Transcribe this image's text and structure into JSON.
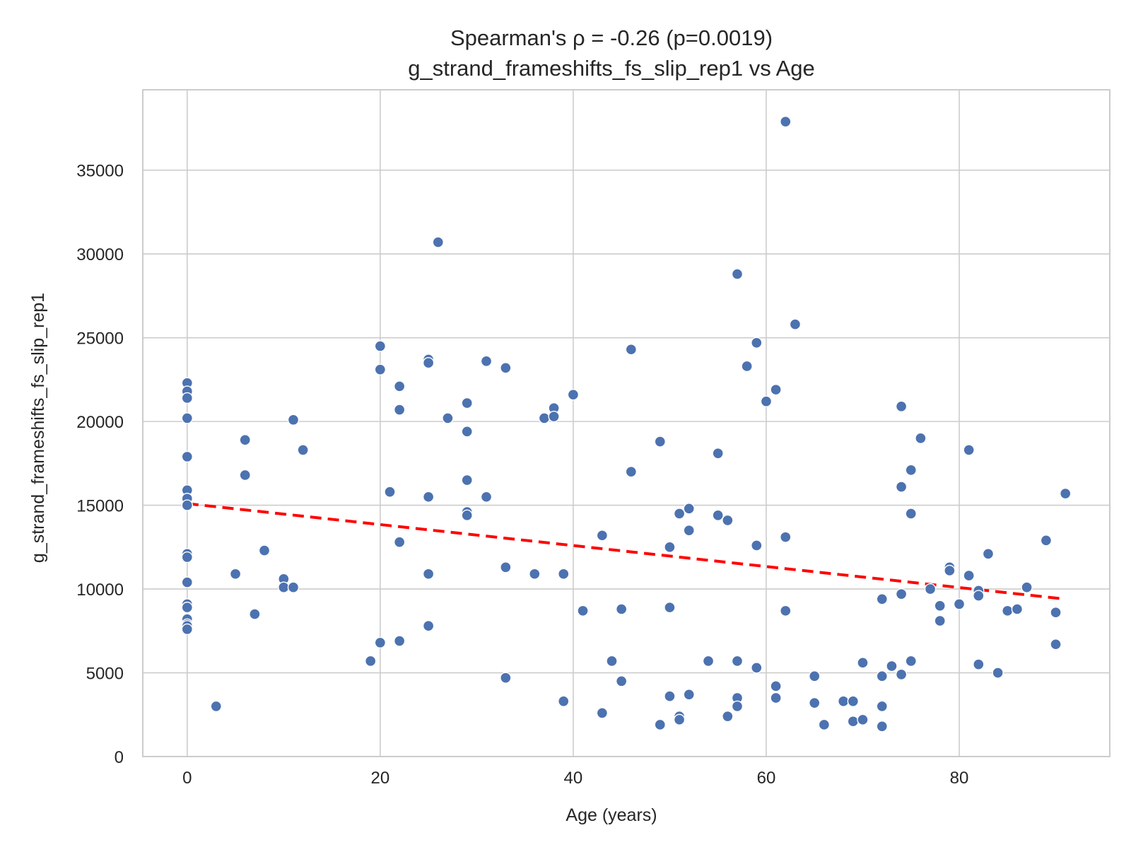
{
  "chart_data": {
    "type": "scatter",
    "title_lines": [
      "Spearman's ρ = -0.26 (p=0.0019)",
      "g_strand_frameshifts_fs_slip_rep1 vs Age"
    ],
    "xlabel": "Age (years)",
    "ylabel": "g_strand_frameshifts_fs_slip_rep1",
    "xlim": [
      -4.6,
      95.6
    ],
    "ylim": [
      0,
      39800
    ],
    "x_ticks": [
      0,
      20,
      40,
      60,
      80
    ],
    "y_ticks": [
      0,
      5000,
      10000,
      15000,
      20000,
      25000,
      30000,
      35000
    ],
    "grid": true,
    "legend": "none",
    "point_color": "#4c72b0",
    "trend_color": "#ff0000",
    "trend_line": {
      "style": "dashed",
      "x": [
        0,
        91
      ],
      "y": [
        15100,
        9400
      ]
    },
    "points": [
      {
        "x": 0,
        "y": 22300
      },
      {
        "x": 0,
        "y": 21800
      },
      {
        "x": 0,
        "y": 21400
      },
      {
        "x": 0,
        "y": 20200
      },
      {
        "x": 0,
        "y": 17900
      },
      {
        "x": 0,
        "y": 15900
      },
      {
        "x": 0,
        "y": 15400
      },
      {
        "x": 0,
        "y": 15000
      },
      {
        "x": 0,
        "y": 12100
      },
      {
        "x": 0,
        "y": 11900
      },
      {
        "x": 0,
        "y": 10400
      },
      {
        "x": 0,
        "y": 9100
      },
      {
        "x": 0,
        "y": 8900
      },
      {
        "x": 0,
        "y": 8200
      },
      {
        "x": 0,
        "y": 7900
      },
      {
        "x": 0,
        "y": 7800
      },
      {
        "x": 0,
        "y": 7600
      },
      {
        "x": 3,
        "y": 3000
      },
      {
        "x": 5,
        "y": 10900
      },
      {
        "x": 6,
        "y": 18900
      },
      {
        "x": 6,
        "y": 16800
      },
      {
        "x": 7,
        "y": 8500
      },
      {
        "x": 8,
        "y": 12300
      },
      {
        "x": 10,
        "y": 10600
      },
      {
        "x": 10,
        "y": 10100
      },
      {
        "x": 11,
        "y": 20100
      },
      {
        "x": 11,
        "y": 10100
      },
      {
        "x": 12,
        "y": 18300
      },
      {
        "x": 19,
        "y": 5700
      },
      {
        "x": 20,
        "y": 24500
      },
      {
        "x": 20,
        "y": 23100
      },
      {
        "x": 20,
        "y": 6800
      },
      {
        "x": 21,
        "y": 15800
      },
      {
        "x": 22,
        "y": 22100
      },
      {
        "x": 22,
        "y": 20700
      },
      {
        "x": 22,
        "y": 12800
      },
      {
        "x": 22,
        "y": 6900
      },
      {
        "x": 25,
        "y": 23700
      },
      {
        "x": 25,
        "y": 23500
      },
      {
        "x": 25,
        "y": 15500
      },
      {
        "x": 25,
        "y": 10900
      },
      {
        "x": 25,
        "y": 7800
      },
      {
        "x": 26,
        "y": 30700
      },
      {
        "x": 27,
        "y": 20200
      },
      {
        "x": 29,
        "y": 21100
      },
      {
        "x": 29,
        "y": 19400
      },
      {
        "x": 29,
        "y": 16500
      },
      {
        "x": 29,
        "y": 14600
      },
      {
        "x": 29,
        "y": 14400
      },
      {
        "x": 31,
        "y": 23600
      },
      {
        "x": 31,
        "y": 15500
      },
      {
        "x": 33,
        "y": 23200
      },
      {
        "x": 33,
        "y": 11300
      },
      {
        "x": 33,
        "y": 4700
      },
      {
        "x": 36,
        "y": 10900
      },
      {
        "x": 37,
        "y": 20200
      },
      {
        "x": 38,
        "y": 20800
      },
      {
        "x": 38,
        "y": 20300
      },
      {
        "x": 39,
        "y": 10900
      },
      {
        "x": 39,
        "y": 3300
      },
      {
        "x": 40,
        "y": 21600
      },
      {
        "x": 41,
        "y": 8700
      },
      {
        "x": 43,
        "y": 13200
      },
      {
        "x": 43,
        "y": 2600
      },
      {
        "x": 44,
        "y": 5700
      },
      {
        "x": 45,
        "y": 8800
      },
      {
        "x": 45,
        "y": 4500
      },
      {
        "x": 46,
        "y": 24300
      },
      {
        "x": 46,
        "y": 17000
      },
      {
        "x": 49,
        "y": 18800
      },
      {
        "x": 49,
        "y": 1900
      },
      {
        "x": 50,
        "y": 12500
      },
      {
        "x": 50,
        "y": 8900
      },
      {
        "x": 50,
        "y": 3600
      },
      {
        "x": 51,
        "y": 14500
      },
      {
        "x": 51,
        "y": 2400
      },
      {
        "x": 51,
        "y": 2200
      },
      {
        "x": 52,
        "y": 14800
      },
      {
        "x": 52,
        "y": 13500
      },
      {
        "x": 52,
        "y": 3700
      },
      {
        "x": 54,
        "y": 5700
      },
      {
        "x": 55,
        "y": 18100
      },
      {
        "x": 55,
        "y": 14400
      },
      {
        "x": 56,
        "y": 14100
      },
      {
        "x": 56,
        "y": 2400
      },
      {
        "x": 57,
        "y": 28800
      },
      {
        "x": 57,
        "y": 5700
      },
      {
        "x": 57,
        "y": 3500
      },
      {
        "x": 57,
        "y": 3000
      },
      {
        "x": 58,
        "y": 23300
      },
      {
        "x": 59,
        "y": 24700
      },
      {
        "x": 59,
        "y": 12600
      },
      {
        "x": 59,
        "y": 5300
      },
      {
        "x": 60,
        "y": 21200
      },
      {
        "x": 61,
        "y": 21900
      },
      {
        "x": 61,
        "y": 4200
      },
      {
        "x": 61,
        "y": 3500
      },
      {
        "x": 62,
        "y": 37900
      },
      {
        "x": 62,
        "y": 13100
      },
      {
        "x": 62,
        "y": 8700
      },
      {
        "x": 63,
        "y": 25800
      },
      {
        "x": 65,
        "y": 4800
      },
      {
        "x": 65,
        "y": 3200
      },
      {
        "x": 66,
        "y": 1900
      },
      {
        "x": 68,
        "y": 3300
      },
      {
        "x": 69,
        "y": 3300
      },
      {
        "x": 69,
        "y": 2100
      },
      {
        "x": 70,
        "y": 5600
      },
      {
        "x": 70,
        "y": 2200
      },
      {
        "x": 72,
        "y": 9400
      },
      {
        "x": 72,
        "y": 4800
      },
      {
        "x": 72,
        "y": 3000
      },
      {
        "x": 72,
        "y": 1800
      },
      {
        "x": 73,
        "y": 5400
      },
      {
        "x": 74,
        "y": 20900
      },
      {
        "x": 74,
        "y": 16100
      },
      {
        "x": 74,
        "y": 9700
      },
      {
        "x": 74,
        "y": 4900
      },
      {
        "x": 75,
        "y": 17100
      },
      {
        "x": 75,
        "y": 14500
      },
      {
        "x": 75,
        "y": 5700
      },
      {
        "x": 76,
        "y": 19000
      },
      {
        "x": 77,
        "y": 10000
      },
      {
        "x": 78,
        "y": 9000
      },
      {
        "x": 78,
        "y": 8100
      },
      {
        "x": 79,
        "y": 11300
      },
      {
        "x": 79,
        "y": 11100
      },
      {
        "x": 80,
        "y": 9100
      },
      {
        "x": 81,
        "y": 18300
      },
      {
        "x": 81,
        "y": 10800
      },
      {
        "x": 82,
        "y": 9900
      },
      {
        "x": 82,
        "y": 9600
      },
      {
        "x": 82,
        "y": 5500
      },
      {
        "x": 83,
        "y": 12100
      },
      {
        "x": 84,
        "y": 5000
      },
      {
        "x": 85,
        "y": 8700
      },
      {
        "x": 86,
        "y": 8800
      },
      {
        "x": 87,
        "y": 10100
      },
      {
        "x": 89,
        "y": 12900
      },
      {
        "x": 90,
        "y": 8600
      },
      {
        "x": 90,
        "y": 6700
      },
      {
        "x": 91,
        "y": 15700
      }
    ]
  }
}
